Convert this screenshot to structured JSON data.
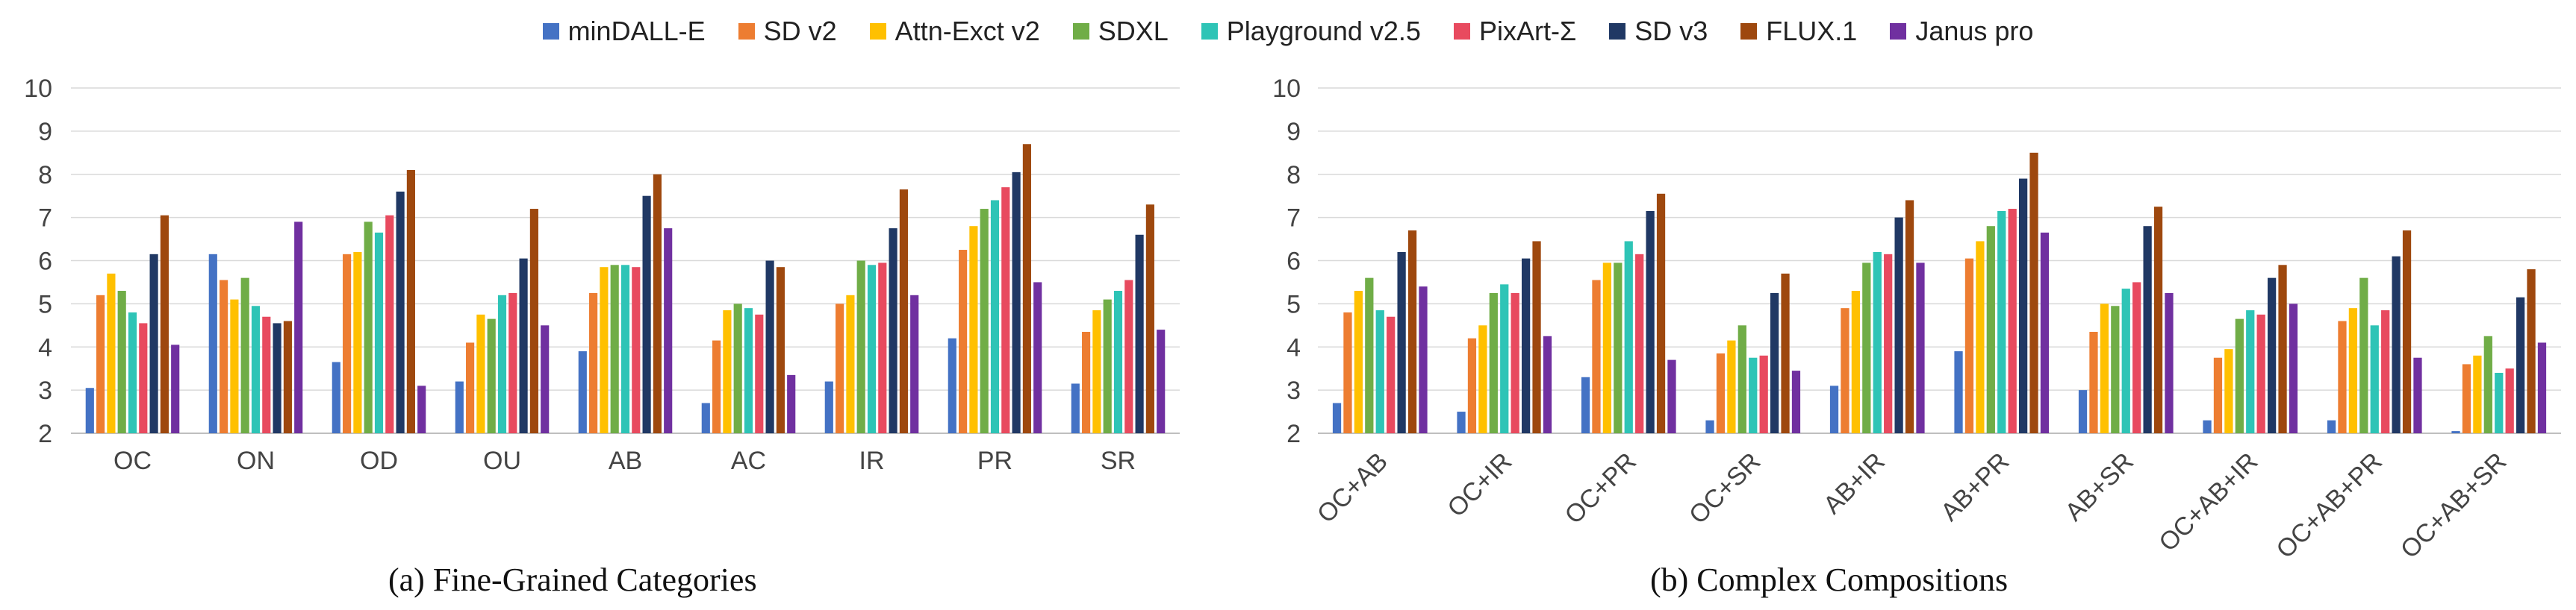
{
  "legend": [
    {
      "name": "minDALL-E",
      "color": "#4472C4"
    },
    {
      "name": "SD v2",
      "color": "#ED7D31"
    },
    {
      "name": "Attn-Exct v2",
      "color": "#FFC000"
    },
    {
      "name": "SDXL",
      "color": "#70AD47"
    },
    {
      "name": "Playground v2.5",
      "color": "#2EC4B6"
    },
    {
      "name": "PixArt-Σ",
      "color": "#E84A5F"
    },
    {
      "name": "SD v3",
      "color": "#203864"
    },
    {
      "name": "FLUX.1",
      "color": "#9E480E"
    },
    {
      "name": "Janus pro",
      "color": "#7030A0"
    }
  ],
  "chart_data": [
    {
      "type": "bar",
      "title": "",
      "caption": "(a) Fine-Grained Categories",
      "ylim": [
        2,
        10
      ],
      "yticks": [
        2,
        3,
        4,
        5,
        6,
        7,
        8,
        9,
        10
      ],
      "grid": true,
      "categories": [
        "OC",
        "ON",
        "OD",
        "OU",
        "AB",
        "AC",
        "IR",
        "PR",
        "SR"
      ],
      "series": [
        {
          "name": "minDALL-E",
          "values": [
            3.05,
            6.15,
            3.65,
            3.2,
            3.9,
            2.7,
            3.2,
            4.2,
            3.15
          ]
        },
        {
          "name": "SD v2",
          "values": [
            5.2,
            5.55,
            6.15,
            4.1,
            5.25,
            4.15,
            5.0,
            6.25,
            4.35
          ]
        },
        {
          "name": "Attn-Exct v2",
          "values": [
            5.7,
            5.1,
            6.2,
            4.75,
            5.85,
            4.85,
            5.2,
            6.8,
            4.85
          ]
        },
        {
          "name": "SDXL",
          "values": [
            5.3,
            5.6,
            6.9,
            4.65,
            5.9,
            5.0,
            6.0,
            7.2,
            5.1
          ]
        },
        {
          "name": "Playground v2.5",
          "values": [
            4.8,
            4.95,
            6.65,
            5.2,
            5.9,
            4.9,
            5.9,
            7.4,
            5.3
          ]
        },
        {
          "name": "PixArt-Σ",
          "values": [
            4.55,
            4.7,
            7.05,
            5.25,
            5.85,
            4.75,
            5.95,
            7.7,
            5.55
          ]
        },
        {
          "name": "SD v3",
          "values": [
            6.15,
            4.55,
            7.6,
            6.05,
            7.5,
            6.0,
            6.75,
            8.05,
            6.6
          ]
        },
        {
          "name": "FLUX.1",
          "values": [
            7.05,
            4.6,
            8.1,
            7.2,
            8.0,
            5.85,
            7.65,
            8.7,
            7.3
          ]
        },
        {
          "name": "Janus pro",
          "values": [
            4.05,
            6.9,
            3.1,
            4.5,
            6.75,
            3.35,
            5.2,
            5.5,
            4.4
          ]
        }
      ]
    },
    {
      "type": "bar",
      "title": "",
      "caption": "(b) Complex Compositions",
      "ylim": [
        2,
        10
      ],
      "yticks": [
        2,
        3,
        4,
        5,
        6,
        7,
        8,
        9,
        10
      ],
      "grid": true,
      "categories": [
        "OC+AB",
        "OC+IR",
        "OC+PR",
        "OC+SR",
        "AB+IR",
        "AB+PR",
        "AB+SR",
        "OC+AB+IR",
        "OC+AB+PR",
        "OC+AB+SR"
      ],
      "series": [
        {
          "name": "minDALL-E",
          "values": [
            2.7,
            2.5,
            3.3,
            2.3,
            3.1,
            3.9,
            3.0,
            2.3,
            2.3,
            2.05
          ]
        },
        {
          "name": "SD v2",
          "values": [
            4.8,
            4.2,
            5.55,
            3.85,
            4.9,
            6.05,
            4.35,
            3.75,
            4.6,
            3.6
          ]
        },
        {
          "name": "Attn-Exct v2",
          "values": [
            5.3,
            4.5,
            5.95,
            4.15,
            5.3,
            6.45,
            5.0,
            3.95,
            4.9,
            3.8
          ]
        },
        {
          "name": "SDXL",
          "values": [
            5.6,
            5.25,
            5.95,
            4.5,
            5.95,
            6.8,
            4.95,
            4.65,
            5.6,
            4.25
          ]
        },
        {
          "name": "Playground v2.5",
          "values": [
            4.85,
            5.45,
            6.45,
            3.75,
            6.2,
            7.15,
            5.35,
            4.85,
            4.5,
            3.4
          ]
        },
        {
          "name": "PixArt-Σ",
          "values": [
            4.7,
            5.25,
            6.15,
            3.8,
            6.15,
            7.2,
            5.5,
            4.75,
            4.85,
            3.5
          ]
        },
        {
          "name": "SD v3",
          "values": [
            6.2,
            6.05,
            7.15,
            5.25,
            7.0,
            7.9,
            6.8,
            5.6,
            6.1,
            5.15
          ]
        },
        {
          "name": "FLUX.1",
          "values": [
            6.7,
            6.45,
            7.55,
            5.7,
            7.4,
            8.5,
            7.25,
            5.9,
            6.7,
            5.8
          ]
        },
        {
          "name": "Janus pro",
          "values": [
            5.4,
            4.25,
            3.7,
            3.45,
            5.95,
            6.65,
            5.25,
            5.0,
            3.75,
            4.1
          ]
        }
      ]
    }
  ]
}
